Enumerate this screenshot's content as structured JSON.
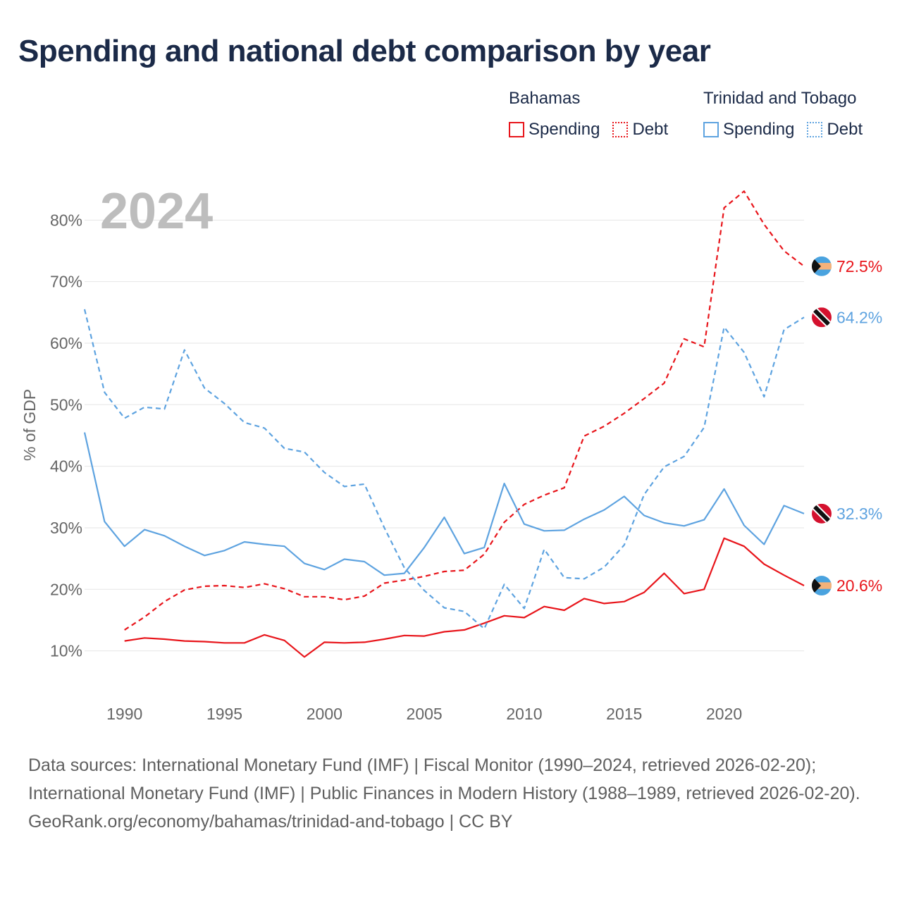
{
  "title": "Spending and national debt comparison by year",
  "legend": {
    "groups": [
      {
        "name": "Bahamas",
        "items": [
          {
            "label": "Spending",
            "style": "solid",
            "color": "#e8151b"
          },
          {
            "label": "Debt",
            "style": "dotted",
            "color": "#e8151b"
          }
        ]
      },
      {
        "name": "Trinidad and Tobago",
        "items": [
          {
            "label": "Spending",
            "style": "solid",
            "color": "#5ea3e0"
          },
          {
            "label": "Debt",
            "style": "dotted",
            "color": "#5ea3e0"
          }
        ]
      }
    ]
  },
  "footer": {
    "sources": "Data sources: International Monetary Fund (IMF) | Fiscal Monitor (1990–2024, retrieved 2026-02-20); International Monetary Fund (IMF) | Public Finances in Modern History (1988–1989, retrieved 2026-02-20).",
    "attribution": "GeoRank.org/economy/bahamas/trinidad-and-tobago | CC BY"
  },
  "chart_data": {
    "type": "line",
    "year_label": "2024",
    "ylabel": "% of GDP",
    "xlim": [
      1988,
      2024
    ],
    "ylim": [
      4,
      90
    ],
    "x_ticks": [
      1990,
      1995,
      2000,
      2005,
      2010,
      2015,
      2020
    ],
    "y_ticks": [
      10,
      20,
      30,
      40,
      50,
      60,
      70,
      80
    ],
    "y_tick_labels": [
      "10%",
      "20%",
      "30%",
      "40%",
      "50%",
      "60%",
      "70%",
      "80%"
    ],
    "series": [
      {
        "name": "Bahamas Spending",
        "country": "Bahamas",
        "metric": "Spending",
        "color": "#e8151b",
        "dashed": false,
        "flag": "bahamas-flag-icon",
        "end_label": "20.6%",
        "x": [
          1990,
          1991,
          1992,
          1993,
          1994,
          1995,
          1996,
          1997,
          1998,
          1999,
          2000,
          2001,
          2002,
          2003,
          2004,
          2005,
          2006,
          2007,
          2008,
          2009,
          2010,
          2011,
          2012,
          2013,
          2014,
          2015,
          2016,
          2017,
          2018,
          2019,
          2020,
          2021,
          2022,
          2023,
          2024
        ],
        "values": [
          11.6,
          12.1,
          11.9,
          11.6,
          11.5,
          11.3,
          11.3,
          12.6,
          11.7,
          9.0,
          11.4,
          11.3,
          11.4,
          11.9,
          12.5,
          12.4,
          13.1,
          13.4,
          14.5,
          15.7,
          15.4,
          17.2,
          16.6,
          18.5,
          17.7,
          18.0,
          19.5,
          22.6,
          19.3,
          20.0,
          28.3,
          27.0,
          24.1,
          22.3,
          20.6
        ]
      },
      {
        "name": "Bahamas Debt",
        "country": "Bahamas",
        "metric": "Debt",
        "color": "#e8151b",
        "dashed": true,
        "flag": "bahamas-flag-icon",
        "end_label": "72.5%",
        "x": [
          1990,
          1991,
          1992,
          1993,
          1994,
          1995,
          1996,
          1997,
          1998,
          1999,
          2000,
          2001,
          2002,
          2003,
          2004,
          2005,
          2006,
          2007,
          2008,
          2009,
          2010,
          2011,
          2012,
          2013,
          2014,
          2015,
          2016,
          2017,
          2018,
          2019,
          2020,
          2021,
          2022,
          2023,
          2024
        ],
        "values": [
          13.4,
          15.5,
          18.0,
          19.9,
          20.5,
          20.6,
          20.3,
          20.9,
          20.1,
          18.8,
          18.8,
          18.3,
          18.9,
          21.0,
          21.5,
          22.1,
          22.9,
          23.1,
          25.7,
          30.9,
          33.8,
          35.3,
          36.5,
          44.9,
          46.5,
          48.6,
          51.0,
          53.5,
          60.7,
          59.4,
          82.0,
          84.7,
          79.3,
          75.0,
          72.5
        ]
      },
      {
        "name": "Trinidad and Tobago Spending",
        "country": "Trinidad and Tobago",
        "metric": "Spending",
        "color": "#5ea3e0",
        "dashed": false,
        "flag": "trinidad-flag-icon",
        "end_label": "32.3%",
        "x": [
          1988,
          1989,
          1990,
          1991,
          1992,
          1993,
          1994,
          1995,
          1996,
          1997,
          1998,
          1999,
          2000,
          2001,
          2002,
          2003,
          2004,
          2005,
          2006,
          2007,
          2008,
          2009,
          2010,
          2011,
          2012,
          2013,
          2014,
          2015,
          2016,
          2017,
          2018,
          2019,
          2020,
          2021,
          2022,
          2023,
          2024
        ],
        "values": [
          45.5,
          31.0,
          27.0,
          29.7,
          28.7,
          27.0,
          25.5,
          26.3,
          27.7,
          27.3,
          27.0,
          24.2,
          23.2,
          24.9,
          24.5,
          22.3,
          22.6,
          26.8,
          31.7,
          25.8,
          26.8,
          37.2,
          30.6,
          29.5,
          29.6,
          31.4,
          32.9,
          35.1,
          32.0,
          30.8,
          30.3,
          31.3,
          36.3,
          30.4,
          27.3,
          33.6,
          32.3
        ]
      },
      {
        "name": "Trinidad and Tobago Debt",
        "country": "Trinidad and Tobago",
        "metric": "Debt",
        "color": "#5ea3e0",
        "dashed": true,
        "flag": "trinidad-flag-icon",
        "end_label": "64.2%",
        "x": [
          1988,
          1989,
          1990,
          1991,
          1992,
          1993,
          1994,
          1995,
          1996,
          1997,
          1998,
          1999,
          2000,
          2001,
          2002,
          2003,
          2004,
          2005,
          2006,
          2007,
          2008,
          2009,
          2010,
          2011,
          2012,
          2013,
          2014,
          2015,
          2016,
          2017,
          2018,
          2019,
          2020,
          2021,
          2022,
          2023,
          2024
        ],
        "values": [
          65.5,
          52.0,
          47.8,
          49.6,
          49.3,
          58.9,
          52.7,
          50.2,
          47.1,
          46.2,
          42.9,
          42.3,
          39.0,
          36.7,
          37.1,
          30.0,
          23.5,
          19.8,
          17.0,
          16.4,
          13.6,
          20.8,
          16.9,
          26.5,
          21.9,
          21.7,
          23.6,
          27.2,
          35.4,
          39.9,
          41.6,
          46.3,
          62.6,
          58.5,
          51.3,
          62.2,
          64.2
        ]
      }
    ]
  }
}
